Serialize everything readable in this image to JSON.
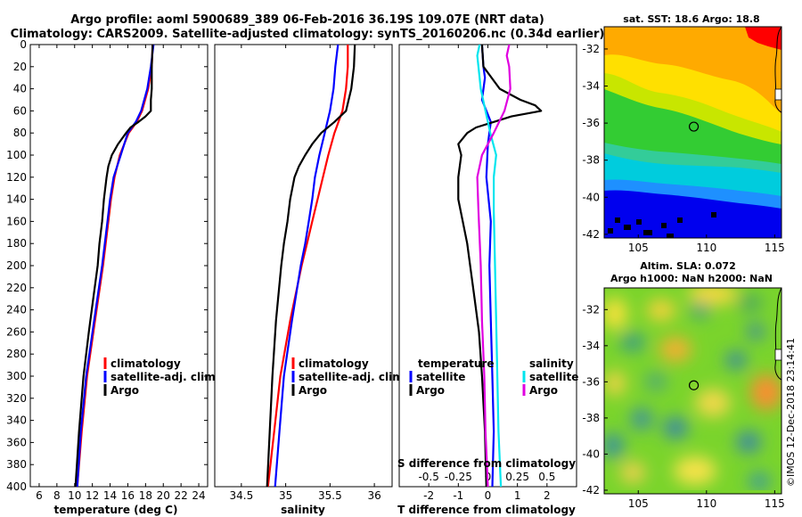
{
  "header": {
    "line1": "Argo profile: aoml 5900689_389 06-Feb-2016 36.19S 109.07E (NRT data)",
    "line2": "Climatology: CARS2009. Satellite-adjusted climatology: synTS_20160206.nc (0.34d earlier)"
  },
  "colors": {
    "climatology": "#ff0000",
    "satellite": "#0000ff",
    "argo": "#000000",
    "s_sat": "#00e5ee",
    "s_argo": "#e000e0"
  },
  "chart_data": [
    {
      "type": "line",
      "panel": "temperature",
      "xlabel": "temperature (deg C)",
      "xlim": [
        5,
        25
      ],
      "xticks": [
        "6",
        "8",
        "10",
        "12",
        "14",
        "16",
        "18",
        "20",
        "22",
        "24"
      ],
      "ylim": [
        400,
        0
      ],
      "yticks": [
        "0",
        "20",
        "40",
        "60",
        "80",
        "100",
        "120",
        "140",
        "160",
        "180",
        "200",
        "220",
        "240",
        "260",
        "280",
        "300",
        "320",
        "340",
        "360",
        "380",
        "400"
      ],
      "legend": [
        "climatology",
        "satellite-adj. clim.",
        "Argo"
      ],
      "series": [
        {
          "name": "climatology",
          "color": "#ff0000",
          "depth": [
            0,
            20,
            40,
            60,
            70,
            80,
            100,
            120,
            140,
            160,
            180,
            200,
            250,
            300,
            350,
            400
          ],
          "values": [
            18.8,
            18.7,
            18.3,
            17.6,
            17.0,
            16.1,
            15.1,
            14.5,
            14.1,
            13.8,
            13.5,
            13.2,
            12.3,
            11.4,
            10.8,
            10.3
          ]
        },
        {
          "name": "satellite-adj. clim.",
          "color": "#0000ff",
          "depth": [
            0,
            20,
            40,
            60,
            70,
            80,
            100,
            120,
            140,
            160,
            180,
            200,
            250,
            300,
            350,
            400
          ],
          "values": [
            18.9,
            18.6,
            18.2,
            17.5,
            16.9,
            16.0,
            15.2,
            14.4,
            14.0,
            13.7,
            13.4,
            13.1,
            12.2,
            11.3,
            10.7,
            10.3
          ]
        },
        {
          "name": "Argo",
          "color": "#000000",
          "depth": [
            0,
            20,
            40,
            50,
            60,
            65,
            70,
            75,
            80,
            90,
            100,
            110,
            120,
            140,
            160,
            180,
            200,
            230,
            260,
            300,
            350,
            400
          ],
          "values": [
            18.8,
            18.7,
            18.7,
            18.6,
            18.6,
            18.0,
            17.2,
            16.3,
            15.8,
            14.9,
            14.2,
            13.8,
            13.6,
            13.3,
            13.1,
            12.8,
            12.6,
            12.1,
            11.6,
            11.0,
            10.5,
            10.1
          ]
        }
      ]
    },
    {
      "type": "line",
      "panel": "salinity",
      "xlabel": "salinity",
      "xlim": [
        34.2,
        36.2
      ],
      "xticks": [
        "34.5",
        "35",
        "35.5",
        "36"
      ],
      "ylim": [
        400,
        0
      ],
      "legend": [
        "climatology",
        "satellite-adj. clim.",
        "Argo"
      ],
      "series": [
        {
          "name": "climatology",
          "color": "#ff0000",
          "depth": [
            0,
            20,
            40,
            60,
            80,
            100,
            120,
            140,
            160,
            180,
            200,
            250,
            300,
            350,
            400
          ],
          "values": [
            35.7,
            35.7,
            35.68,
            35.64,
            35.55,
            35.48,
            35.42,
            35.36,
            35.3,
            35.24,
            35.18,
            35.05,
            34.94,
            34.87,
            34.8
          ]
        },
        {
          "name": "satellite-adj. clim.",
          "color": "#0000ff",
          "depth": [
            0,
            20,
            40,
            60,
            80,
            100,
            120,
            140,
            160,
            180,
            200,
            250,
            300,
            350,
            400
          ],
          "values": [
            35.59,
            35.56,
            35.54,
            35.5,
            35.44,
            35.38,
            35.33,
            35.3,
            35.26,
            35.22,
            35.17,
            35.07,
            34.98,
            34.93,
            34.88
          ]
        },
        {
          "name": "Argo",
          "color": "#000000",
          "depth": [
            0,
            20,
            40,
            60,
            70,
            80,
            90,
            100,
            110,
            120,
            140,
            160,
            180,
            200,
            250,
            300,
            350,
            400
          ],
          "values": [
            35.78,
            35.77,
            35.74,
            35.68,
            35.55,
            35.4,
            35.3,
            35.22,
            35.15,
            35.1,
            35.05,
            35.02,
            34.98,
            34.95,
            34.89,
            34.85,
            34.82,
            34.79
          ]
        }
      ]
    },
    {
      "type": "line",
      "panel": "difference",
      "xlabel": "T difference from climatology",
      "xlabel_top": "S difference from climatology",
      "xlim": [
        -3,
        3
      ],
      "xticks": [
        "-2",
        "-1",
        "0",
        "1",
        "2"
      ],
      "sticks": [
        "-0.5",
        "-0.25",
        "0",
        "0.25",
        "0.5"
      ],
      "ylim": [
        400,
        0
      ],
      "legend_temperature": {
        "title": "temperature",
        "items": [
          "satellite",
          "Argo"
        ]
      },
      "legend_salinity": {
        "title": "salinity",
        "items": [
          "satellite",
          "Argo"
        ]
      },
      "series": [
        {
          "name": "T satellite",
          "color": "#0000ff",
          "depth": [
            0,
            20,
            30,
            50,
            70,
            90,
            120,
            160,
            200,
            250,
            300,
            350,
            400
          ],
          "values": [
            -0.2,
            -0.15,
            -0.1,
            -0.2,
            0.1,
            0.0,
            -0.05,
            0.1,
            0.05,
            0.1,
            0.15,
            0.2,
            0.15
          ]
        },
        {
          "name": "T Argo",
          "color": "#000000",
          "depth": [
            0,
            20,
            40,
            50,
            55,
            60,
            65,
            70,
            75,
            80,
            90,
            100,
            120,
            140,
            160,
            180,
            200,
            230,
            260,
            300,
            350,
            400
          ],
          "values": [
            -0.2,
            -0.15,
            0.4,
            1.1,
            1.6,
            1.8,
            0.8,
            0.2,
            -0.4,
            -0.7,
            -1.0,
            -0.9,
            -1.0,
            -1.0,
            -0.85,
            -0.7,
            -0.6,
            -0.45,
            -0.3,
            -0.2,
            -0.1,
            -0.05
          ]
        },
        {
          "name": "S satellite",
          "color": "#00e5ee",
          "depth": [
            0,
            10,
            20,
            40,
            60,
            80,
            100,
            120,
            150,
            200,
            250,
            300,
            350,
            400
          ],
          "values": [
            -0.07,
            -0.09,
            -0.08,
            -0.06,
            -0.02,
            0.02,
            0.07,
            0.05,
            0.05,
            0.06,
            0.07,
            0.08,
            0.09,
            0.11
          ]
        },
        {
          "name": "S Argo",
          "color": "#e000e0",
          "depth": [
            0,
            10,
            20,
            40,
            60,
            80,
            100,
            120,
            150,
            200,
            250,
            300,
            350,
            400
          ],
          "values": [
            0.18,
            0.16,
            0.18,
            0.19,
            0.14,
            0.05,
            -0.05,
            -0.09,
            -0.08,
            -0.06,
            -0.05,
            -0.03,
            -0.02,
            0.0
          ]
        }
      ]
    },
    {
      "type": "heatmap",
      "panel": "SST map",
      "title": "sat. SST: 18.6 Argo: 18.8",
      "xlim": [
        102.5,
        115.5
      ],
      "ylim": [
        -42.2,
        -30.8
      ],
      "xticks": [
        "105",
        "110",
        "115"
      ],
      "yticks": [
        "-32",
        "-34",
        "-36",
        "-38",
        "-40",
        "-42"
      ],
      "marker": {
        "lon": 109.07,
        "lat": -36.19
      }
    },
    {
      "type": "heatmap",
      "panel": "SLA map",
      "title": "Altim. SLA: 0.072",
      "subtitle": "Argo h1000: NaN h2000: NaN",
      "xlim": [
        102.5,
        115.5
      ],
      "ylim": [
        -42.2,
        -30.8
      ],
      "xticks": [
        "105",
        "110",
        "115"
      ],
      "yticks": [
        "-32",
        "-34",
        "-36",
        "-38",
        "-40",
        "-42"
      ],
      "marker": {
        "lon": 109.07,
        "lat": -36.19
      }
    }
  ],
  "credit": "©IMOS 12-Dec-2018 23:14:41"
}
